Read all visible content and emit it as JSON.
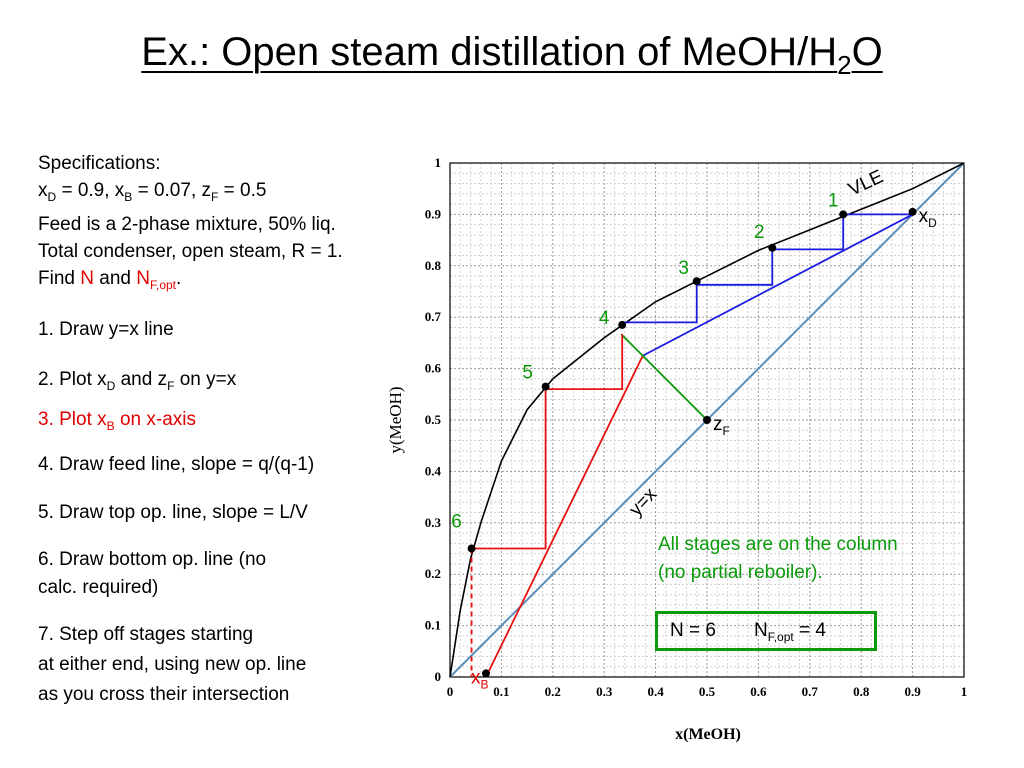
{
  "title": {
    "main": "Ex.: Open steam distillation of MeOH/H",
    "sub": "2",
    "tail": "O"
  },
  "specs": {
    "heading": "Specifications:",
    "l2": {
      "a": "x",
      "as": "D",
      "b": " = 0.9, x",
      "bs": "B",
      "c": " = 0.07,  z",
      "cs": "F",
      "d": " = 0.5"
    },
    "l3": "Feed is a 2-phase mixture, 50% liq.",
    "l4": "Total condenser, open steam, R = 1.",
    "l5": {
      "a": "Find ",
      "n": "N",
      "b": " and ",
      "nf": "N",
      "nfs": "F,opt",
      "end": "."
    }
  },
  "steps": {
    "s1": "1. Draw y=x line",
    "s2": {
      "a": "2. Plot x",
      "as": "D",
      "b": " and z",
      "bs": "F",
      "c": " on y=x"
    },
    "s3": {
      "a": "3. Plot x",
      "as": "B",
      "b": " on x-axis"
    },
    "s4": "4. Draw feed line, slope = q/(q-1)",
    "s5": "5. Draw top op. line, slope = L/V",
    "s6a": "6. Draw bottom op. line (no",
    "s6b": "calc. required)",
    "s7a": "7. Step off stages starting",
    "s7b": "at either end, using new op. line",
    "s7c": "as you cross their intersection"
  },
  "note": {
    "l1": "All stages are on the column",
    "l2": "(no partial reboiler)."
  },
  "result": {
    "n": "N = 6",
    "nf": "N",
    "nfs": "F,opt",
    "nfv": " = 4"
  },
  "colors": {
    "vle": "#000000",
    "diag": "#5b8db8",
    "top": "#1a1ae0",
    "bottom": "#e81010",
    "feed": "#0a9a0a",
    "stage": "#0a9a0a"
  },
  "chart_data": {
    "type": "line",
    "xlabel": "x(MeOH)",
    "ylabel": "y(MeOH)",
    "xlim": [
      0,
      1
    ],
    "ylim": [
      0,
      1
    ],
    "ticks": [
      "0",
      "0.1",
      "0.2",
      "0.3",
      "0.4",
      "0.5",
      "0.6",
      "0.7",
      "0.8",
      "0.9",
      "1"
    ],
    "grid": true,
    "curve_label": "VLE",
    "diag_label": "y=x",
    "vle": [
      [
        0,
        0
      ],
      [
        0.02,
        0.13
      ],
      [
        0.04,
        0.23
      ],
      [
        0.06,
        0.3
      ],
      [
        0.1,
        0.42
      ],
      [
        0.15,
        0.52
      ],
      [
        0.2,
        0.58
      ],
      [
        0.3,
        0.66
      ],
      [
        0.4,
        0.73
      ],
      [
        0.5,
        0.78
      ],
      [
        0.6,
        0.83
      ],
      [
        0.7,
        0.87
      ],
      [
        0.8,
        0.91
      ],
      [
        0.9,
        0.95
      ],
      [
        1,
        1
      ]
    ],
    "top_line": [
      [
        0.375,
        0.625
      ],
      [
        0.9,
        0.9
      ]
    ],
    "bottom_line": [
      [
        0.07,
        0
      ],
      [
        0.375,
        0.625
      ]
    ],
    "feed_line": [
      [
        0.5,
        0.5
      ],
      [
        0.333,
        0.667
      ]
    ],
    "top_steps": [
      [
        0.9,
        0.9
      ],
      [
        0.765,
        0.9
      ],
      [
        0.765,
        0.832
      ],
      [
        0.627,
        0.832
      ],
      [
        0.627,
        0.763
      ],
      [
        0.48,
        0.763
      ],
      [
        0.48,
        0.69
      ],
      [
        0.335,
        0.69
      ]
    ],
    "bottom_steps": [
      [
        0.335,
        0.667
      ],
      [
        0.335,
        0.56
      ],
      [
        0.186,
        0.56
      ],
      [
        0.186,
        0.25
      ],
      [
        0.042,
        0.25
      ],
      [
        0.042,
        0
      ]
    ],
    "stages": [
      {
        "label": "1",
        "x": 0.765,
        "y": 0.9
      },
      {
        "label": "2",
        "x": 0.627,
        "y": 0.835
      },
      {
        "label": "3",
        "x": 0.48,
        "y": 0.77
      },
      {
        "label": "4",
        "x": 0.335,
        "y": 0.685
      },
      {
        "label": "5",
        "x": 0.186,
        "y": 0.565
      },
      {
        "label": "6",
        "x": 0.042,
        "y": 0.25
      }
    ],
    "points": [
      {
        "label": "x",
        "sub": "D",
        "x": 0.9,
        "y": 0.905
      },
      {
        "label": "z",
        "sub": "F",
        "x": 0.5,
        "y": 0.5
      },
      {
        "label": "x",
        "sub": "B",
        "x": 0.07,
        "y": 0.007
      }
    ]
  }
}
